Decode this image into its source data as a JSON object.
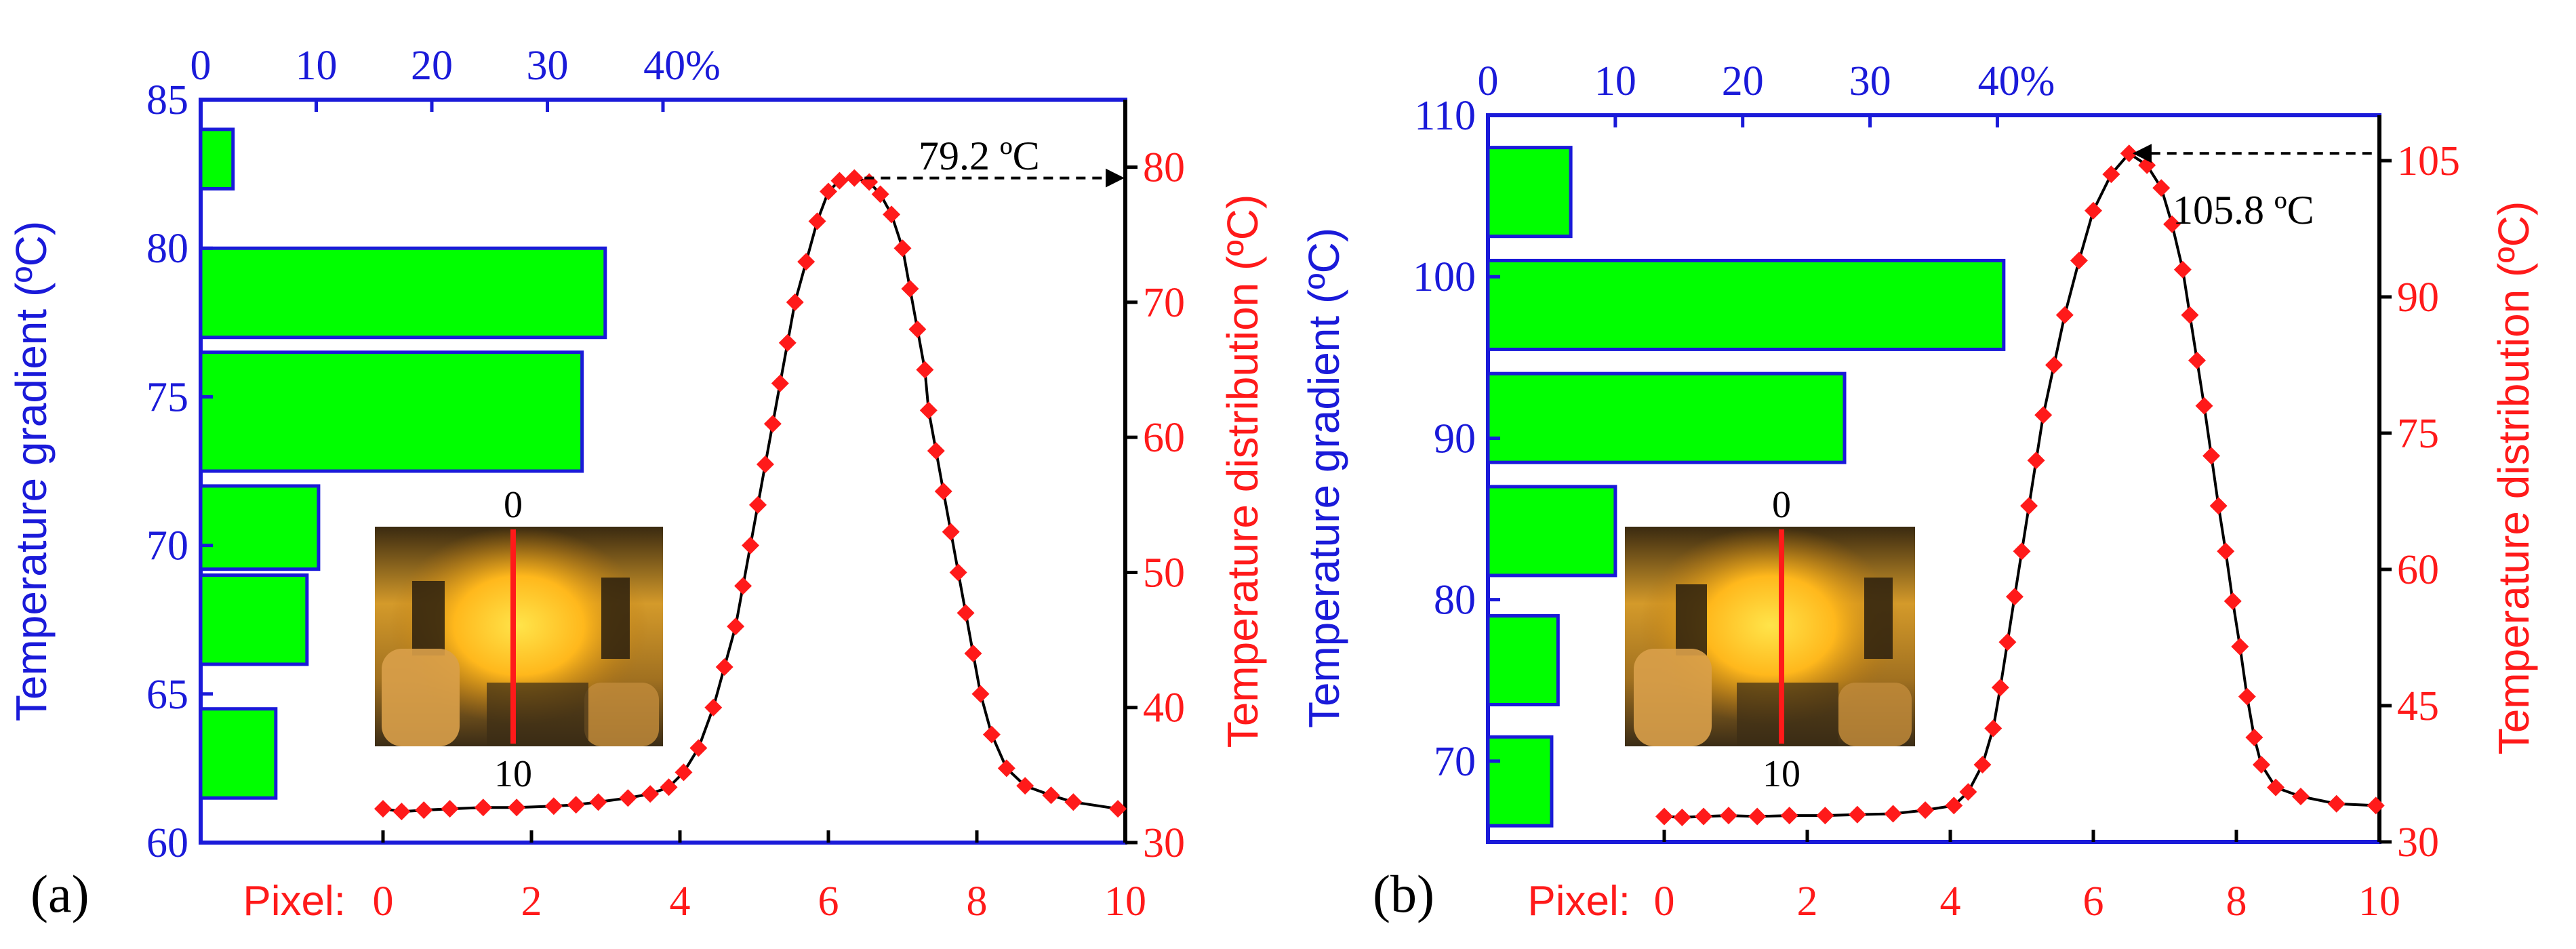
{
  "colors": {
    "left_axis": "#1a1ad9",
    "right_axis": "#ff1a1a",
    "bar_fill": "#00ff00",
    "bar_stroke": "#1a1ad9",
    "marker": "#ff1a1a",
    "line": "#000000",
    "inset_line": "#ff1a1a"
  },
  "chart_data": [
    {
      "panel_label": "(a)",
      "type": "bar+line",
      "left_axis": {
        "label": "Temperature gradient (ºC)",
        "range": [
          60,
          85
        ],
        "ticks": [
          60,
          65,
          70,
          75,
          80,
          85
        ]
      },
      "top_axis": {
        "range": [
          0,
          80
        ],
        "ticks": [
          0,
          10,
          20,
          30,
          40
        ],
        "tick_labels": [
          "0",
          "10",
          "20",
          "30",
          "40%"
        ]
      },
      "right_axis": {
        "label": "Temperature distribution (ºC)",
        "range": [
          30,
          85
        ],
        "ticks": [
          30,
          40,
          50,
          60,
          70,
          80
        ]
      },
      "bottom_axis": {
        "prefix": "Pixel:",
        "range": [
          0,
          10
        ],
        "ticks": [
          0,
          2,
          4,
          6,
          8,
          10
        ]
      },
      "histogram": {
        "bars": [
          {
            "bin": [
              61.5,
              64.5
            ],
            "percent": 6.5
          },
          {
            "bin": [
              66.0,
              69.0
            ],
            "percent": 9.2
          },
          {
            "bin": [
              69.2,
              72.0
            ],
            "percent": 10.2
          },
          {
            "bin": [
              72.5,
              76.5
            ],
            "percent": 33.0
          },
          {
            "bin": [
              77.0,
              80.0
            ],
            "percent": 35.0
          },
          {
            "bin": [
              82.0,
              84.0
            ],
            "percent": 2.8
          }
        ]
      },
      "profile": {
        "x": [
          0,
          0.25,
          0.55,
          0.9,
          1.35,
          1.8,
          2.3,
          2.6,
          2.9,
          3.3,
          3.6,
          3.85,
          4.05,
          4.25,
          4.45,
          4.6,
          4.75,
          4.85,
          4.95,
          5.05,
          5.15,
          5.25,
          5.35,
          5.45,
          5.55,
          5.7,
          5.85,
          6.0,
          6.15,
          6.35,
          6.55,
          6.7,
          6.85,
          7.0,
          7.1,
          7.2,
          7.3,
          7.35,
          7.45,
          7.55,
          7.65,
          7.75,
          7.85,
          7.95,
          8.05,
          8.2,
          8.4,
          8.65,
          9.0,
          9.3,
          9.9
        ],
        "y": [
          32.5,
          32.3,
          32.4,
          32.5,
          32.6,
          32.6,
          32.7,
          32.8,
          33.0,
          33.3,
          33.6,
          34.1,
          35.2,
          37.0,
          40.0,
          43.0,
          46.0,
          49.0,
          52.0,
          55.0,
          58.0,
          61.0,
          64.0,
          67.0,
          70.0,
          73.0,
          76.0,
          78.2,
          79.0,
          79.2,
          78.9,
          78.0,
          76.5,
          74.0,
          71.0,
          68.0,
          65.0,
          62.0,
          59.0,
          56.0,
          53.0,
          50.0,
          47.0,
          44.0,
          41.0,
          38.0,
          35.5,
          34.2,
          33.5,
          33.0,
          32.5
        ]
      },
      "peak": {
        "x": 6.35,
        "y": 79.2,
        "label": "79.2 ºC"
      },
      "inset": {
        "top_label": "0",
        "bottom_label": "10"
      }
    },
    {
      "panel_label": "(b)",
      "type": "bar+line",
      "left_axis": {
        "label": "Temperature gradient (ºC)",
        "range": [
          65,
          110
        ],
        "ticks": [
          70,
          80,
          90,
          100,
          110
        ]
      },
      "top_axis": {
        "range": [
          0,
          70
        ],
        "ticks": [
          0,
          10,
          20,
          30,
          40
        ],
        "tick_labels": [
          "0",
          "10",
          "20",
          "30",
          "40%"
        ]
      },
      "right_axis": {
        "label": "Temperature distribution (ºC)",
        "range": [
          30,
          110
        ],
        "ticks": [
          30,
          45,
          60,
          75,
          90,
          105
        ]
      },
      "bottom_axis": {
        "prefix": "Pixel:",
        "range": [
          0,
          10
        ],
        "ticks": [
          0,
          2,
          4,
          6,
          8,
          10
        ]
      },
      "histogram": {
        "bars": [
          {
            "bin": [
              66.0,
              71.5
            ],
            "percent": 5.0
          },
          {
            "bin": [
              73.5,
              79.0
            ],
            "percent": 5.5
          },
          {
            "bin": [
              81.5,
              87.0
            ],
            "percent": 10.0
          },
          {
            "bin": [
              88.5,
              94.0
            ],
            "percent": 28.0
          },
          {
            "bin": [
              95.5,
              101.0
            ],
            "percent": 40.5
          },
          {
            "bin": [
              102.5,
              108.0
            ],
            "percent": 6.5
          }
        ]
      },
      "profile": {
        "x": [
          0,
          0.25,
          0.55,
          0.9,
          1.3,
          1.75,
          2.25,
          2.7,
          3.2,
          3.65,
          4.05,
          4.25,
          4.45,
          4.6,
          4.7,
          4.8,
          4.9,
          5.0,
          5.1,
          5.2,
          5.3,
          5.45,
          5.6,
          5.8,
          6.0,
          6.25,
          6.5,
          6.75,
          6.95,
          7.1,
          7.25,
          7.35,
          7.45,
          7.55,
          7.65,
          7.75,
          7.85,
          7.95,
          8.05,
          8.15,
          8.25,
          8.35,
          8.55,
          8.9,
          9.4,
          9.95
        ],
        "y": [
          32.8,
          32.7,
          32.8,
          32.9,
          32.8,
          32.9,
          32.9,
          33.0,
          33.1,
          33.5,
          34.0,
          35.5,
          38.5,
          42.5,
          47.0,
          52.0,
          57.0,
          62.0,
          67.0,
          72.0,
          77.0,
          82.5,
          88.0,
          94.0,
          99.5,
          103.5,
          105.8,
          104.5,
          102.0,
          98.0,
          93.0,
          88.0,
          83.0,
          78.0,
          72.5,
          67.0,
          62.0,
          56.5,
          51.5,
          46.0,
          41.5,
          38.5,
          36.0,
          35.0,
          34.2,
          34.0
        ]
      },
      "peak": {
        "x": 6.5,
        "y": 105.8,
        "label": "105.8 ºC"
      },
      "inset": {
        "top_label": "0",
        "bottom_label": "10"
      }
    }
  ]
}
